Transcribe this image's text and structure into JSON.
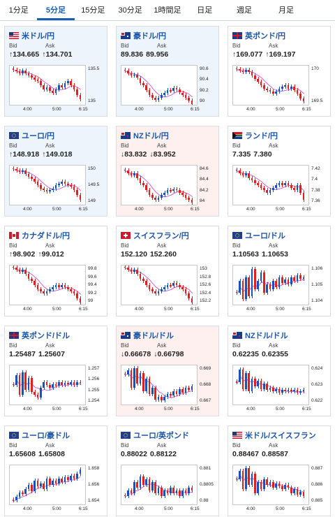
{
  "tabs": [
    {
      "label": "1分足",
      "active": false
    },
    {
      "label": "5分足",
      "active": true
    },
    {
      "label": "15分足",
      "active": false
    },
    {
      "label": "30分足",
      "active": false
    },
    {
      "label": "1時間足",
      "active": false
    },
    {
      "label": "日足",
      "active": false
    },
    {
      "label": "週足",
      "active": false
    },
    {
      "label": "月足",
      "active": false
    }
  ],
  "labels": {
    "bid": "Bid",
    "ask": "Ask"
  },
  "colors": {
    "up": "#1a4fc4",
    "down": "#e02020",
    "ma": "#d23cd2"
  },
  "cards": [
    {
      "name": "米ドル/円",
      "flag": "us",
      "trend": "up",
      "bid": "↑134.665",
      "ask": "↑134.701",
      "yticks": [
        "135.5",
        "135"
      ],
      "xticks": [
        "4:00",
        "5:00",
        "6:15"
      ],
      "ylim": [
        134.7,
        135.7
      ],
      "series": [
        135.6,
        135.55,
        135.5,
        135.58,
        135.5,
        135.45,
        135.4,
        135.35,
        135.3,
        135.2,
        135.1,
        135.15,
        135.05,
        135.0,
        135.1,
        135.2,
        135.15,
        135.25,
        135.3,
        135.2,
        135.1,
        134.95,
        134.85
      ]
    },
    {
      "name": "豪ドル/円",
      "flag": "au",
      "trend": "up",
      "bid": "89.836",
      "ask": "89.956",
      "yticks": [
        "90.6",
        "90.4",
        "90.2",
        "90"
      ],
      "xticks": [
        "4:00",
        "5:00",
        "6:15"
      ],
      "ylim": [
        89.9,
        90.7
      ],
      "series": [
        90.6,
        90.55,
        90.5,
        90.52,
        90.45,
        90.35,
        90.3,
        90.2,
        90.1,
        90.05,
        90.0,
        90.05,
        90.1,
        90.15,
        90.2,
        90.18,
        90.25,
        90.22,
        90.15,
        90.1,
        90.05,
        89.98,
        89.92
      ]
    },
    {
      "name": "英ポンド/円",
      "flag": "gb",
      "trend": "flat",
      "bid": "↑169.077",
      "ask": "↑169.197",
      "yticks": [
        "170",
        "169.5"
      ],
      "xticks": [
        "4:00",
        "5:00",
        "6:15"
      ],
      "ylim": [
        169.1,
        170.3
      ],
      "series": [
        170.2,
        170.15,
        170.1,
        170.18,
        170.1,
        170.0,
        169.9,
        169.8,
        169.7,
        169.6,
        169.55,
        169.5,
        169.45,
        169.5,
        169.6,
        169.65,
        169.7,
        169.6,
        169.65,
        169.55,
        169.45,
        169.3,
        169.2
      ]
    },
    {
      "name": "ユーロ/円",
      "flag": "eu",
      "trend": "up",
      "bid": "↑148.918",
      "ask": "↑149.018",
      "yticks": [
        "150",
        "149.5",
        "149"
      ],
      "xticks": [
        "4:00",
        "5:00",
        "6:15"
      ],
      "ylim": [
        148.9,
        150.1
      ],
      "series": [
        150.0,
        149.95,
        149.9,
        149.95,
        149.85,
        149.75,
        149.7,
        149.6,
        149.5,
        149.4,
        149.35,
        149.3,
        149.35,
        149.4,
        149.5,
        149.55,
        149.6,
        149.55,
        149.5,
        149.45,
        149.35,
        149.2,
        149.05
      ]
    },
    {
      "name": "NZドル/円",
      "flag": "nz",
      "trend": "down",
      "bid": "↓83.832",
      "ask": "↓83.952",
      "yticks": [
        "84.6",
        "84.4",
        "84.2",
        "84"
      ],
      "xticks": [
        "4:00",
        "5:00",
        "6:15"
      ],
      "ylim": [
        83.9,
        84.7
      ],
      "series": [
        84.6,
        84.55,
        84.5,
        84.55,
        84.45,
        84.35,
        84.3,
        84.2,
        84.1,
        84.05,
        84.0,
        84.05,
        84.1,
        84.15,
        84.2,
        84.18,
        84.22,
        84.2,
        84.15,
        84.1,
        84.05,
        84.0,
        83.95
      ]
    },
    {
      "name": "ランド/円",
      "flag": "za",
      "trend": "flat",
      "bid": "7.335",
      "ask": "7.380",
      "yticks": [
        "7.42",
        "7.4",
        "7.38",
        "7.36"
      ],
      "xticks": [
        "4:00",
        "5:00",
        "6:15"
      ],
      "ylim": [
        7.35,
        7.43
      ],
      "series": [
        7.42,
        7.415,
        7.41,
        7.415,
        7.405,
        7.4,
        7.395,
        7.39,
        7.385,
        7.38,
        7.375,
        7.38,
        7.385,
        7.39,
        7.395,
        7.39,
        7.395,
        7.39,
        7.385,
        7.38,
        7.39,
        7.375,
        7.36
      ]
    },
    {
      "name": "カナダドル/円",
      "flag": "ca",
      "trend": "flat",
      "bid": "↑98.902",
      "ask": "↑99.012",
      "yticks": [
        "99.8",
        "99.6",
        "99.4",
        "99.2",
        "99"
      ],
      "xticks": [
        "4:00",
        "5:00",
        "6:15"
      ],
      "ylim": [
        98.95,
        99.85
      ],
      "series": [
        99.8,
        99.75,
        99.7,
        99.75,
        99.65,
        99.55,
        99.5,
        99.4,
        99.3,
        99.25,
        99.2,
        99.25,
        99.3,
        99.35,
        99.4,
        99.35,
        99.4,
        99.35,
        99.3,
        99.25,
        99.2,
        99.1,
        99.0
      ]
    },
    {
      "name": "スイスフラン/円",
      "flag": "ch",
      "trend": "flat",
      "bid": "152.120",
      "ask": "152.260",
      "yticks": [
        "153",
        "152.8",
        "152.6",
        "152.4",
        "152.2"
      ],
      "xticks": [
        "4:00",
        "5:00",
        "6:15"
      ],
      "ylim": [
        152.15,
        153.05
      ],
      "series": [
        153.0,
        152.95,
        152.9,
        152.95,
        152.85,
        152.75,
        152.7,
        152.6,
        152.5,
        152.45,
        152.4,
        152.45,
        152.5,
        152.55,
        152.6,
        152.58,
        152.65,
        152.6,
        152.55,
        152.5,
        152.4,
        152.3,
        152.2
      ]
    },
    {
      "name": "ユーロ/ドル",
      "flag": "eu",
      "trend": "flat",
      "bid": "1.10563",
      "ask": "1.10653",
      "yticks": [
        "1.106",
        "1.105",
        "1.104"
      ],
      "xticks": [
        "4:00",
        "5:00",
        "6:15"
      ],
      "ylim": [
        1.1035,
        1.1068
      ],
      "series": [
        1.1045,
        1.1055,
        1.104,
        1.1058,
        1.1042,
        1.1065,
        1.1048,
        1.1055,
        1.1062,
        1.1045,
        1.1052,
        1.1048,
        1.1055,
        1.105,
        1.1058,
        1.1053,
        1.1056,
        1.1052,
        1.1058,
        1.1055,
        1.106,
        1.1057,
        1.1058
      ]
    },
    {
      "name": "英ポンド/ドル",
      "flag": "gb",
      "trend": "flat",
      "bid": "1.25487",
      "ask": "1.25607",
      "yticks": [
        "1.257",
        "1.256",
        "1.255",
        "1.254"
      ],
      "xticks": [
        "4:00",
        "5:00",
        "6:15"
      ],
      "ylim": [
        1.2535,
        1.2575
      ],
      "series": [
        1.2555,
        1.2565,
        1.2545,
        1.2568,
        1.255,
        1.2562,
        1.2548,
        1.2545,
        1.2542,
        1.2552,
        1.2558,
        1.2555,
        1.2552,
        1.2556,
        1.2554,
        1.2558,
        1.2555,
        1.2557,
        1.2556,
        1.2558,
        1.2555,
        1.2558,
        1.2557
      ]
    },
    {
      "name": "豪ドル/ドル",
      "flag": "au",
      "trend": "down",
      "bid": "↓0.66678",
      "ask": "↓0.66798",
      "yticks": [
        "0.669",
        "0.668",
        "0.667"
      ],
      "xticks": [
        "4:00",
        "5:00",
        "6:15"
      ],
      "ylim": [
        0.6662,
        0.6692
      ],
      "series": [
        0.6685,
        0.6688,
        0.6675,
        0.669,
        0.6678,
        0.6686,
        0.6672,
        0.6682,
        0.667,
        0.6675,
        0.6666,
        0.6668,
        0.6665,
        0.6668,
        0.667,
        0.6669,
        0.6672,
        0.667,
        0.6674,
        0.6671,
        0.6675,
        0.6673,
        0.6676
      ]
    },
    {
      "name": "NZドル/ドル",
      "flag": "nz",
      "trend": "flat",
      "bid": "0.62235",
      "ask": "0.62355",
      "yticks": [
        "0.624",
        "0.623",
        "0.622"
      ],
      "xticks": [
        "4:00",
        "5:00",
        "6:15"
      ],
      "ylim": [
        0.6218,
        0.6248
      ],
      "series": [
        0.6235,
        0.6245,
        0.623,
        0.6242,
        0.6228,
        0.6238,
        0.6232,
        0.6236,
        0.623,
        0.6234,
        0.6229,
        0.6231,
        0.6228,
        0.623,
        0.6227,
        0.6229,
        0.6228,
        0.6229,
        0.6228,
        0.6229,
        0.6227,
        0.6228,
        0.6229
      ]
    },
    {
      "name": "ユーロ/豪ドル",
      "flag": "eu",
      "trend": "flat",
      "bid": "1.65608",
      "ask": "1.65808",
      "yticks": [
        "1.658",
        "1.656",
        "1.654"
      ],
      "xticks": [
        "4:00",
        "5:00",
        "6:15"
      ],
      "ylim": [
        1.6535,
        1.6585
      ],
      "series": [
        1.654,
        1.6545,
        1.655,
        1.6548,
        1.6555,
        1.656,
        1.6552,
        1.6565,
        1.6558,
        1.6562,
        1.6555,
        1.6568,
        1.656,
        1.6565,
        1.6562,
        1.6568,
        1.6564,
        1.657,
        1.6566,
        1.6572,
        1.6568,
        1.6574,
        1.658
      ]
    },
    {
      "name": "ユーロ/英ポンド",
      "flag": "eu",
      "trend": "flat",
      "bid": "0.88022",
      "ask": "0.88122",
      "yticks": [
        "0.881",
        "0.8805",
        "0.88"
      ],
      "xticks": [
        "4:00",
        "5:00",
        "6:15"
      ],
      "ylim": [
        0.8798,
        0.8812
      ],
      "series": [
        0.8801,
        0.8803,
        0.8802,
        0.8806,
        0.8804,
        0.8808,
        0.8805,
        0.8807,
        0.8803,
        0.8806,
        0.8802,
        0.8804,
        0.8801,
        0.8803,
        0.8802,
        0.8804,
        0.8802,
        0.8803,
        0.8801,
        0.8803,
        0.8802,
        0.8804,
        0.8803
      ]
    },
    {
      "name": "米ドル/スイスフラン",
      "flag": "us",
      "trend": "flat",
      "bid": "0.88467",
      "ask": "0.88587",
      "yticks": [
        "0.887",
        "0.886",
        "0.885"
      ],
      "xticks": [
        "4:00",
        "5:00",
        "6:15"
      ],
      "ylim": [
        0.8844,
        0.8872
      ],
      "series": [
        0.8862,
        0.8868,
        0.8855,
        0.887,
        0.8858,
        0.8866,
        0.8852,
        0.886,
        0.8855,
        0.8862,
        0.8858,
        0.886,
        0.8856,
        0.8859,
        0.8857,
        0.8855,
        0.8858,
        0.8856,
        0.8852,
        0.8855,
        0.8851,
        0.8853,
        0.885
      ]
    }
  ]
}
